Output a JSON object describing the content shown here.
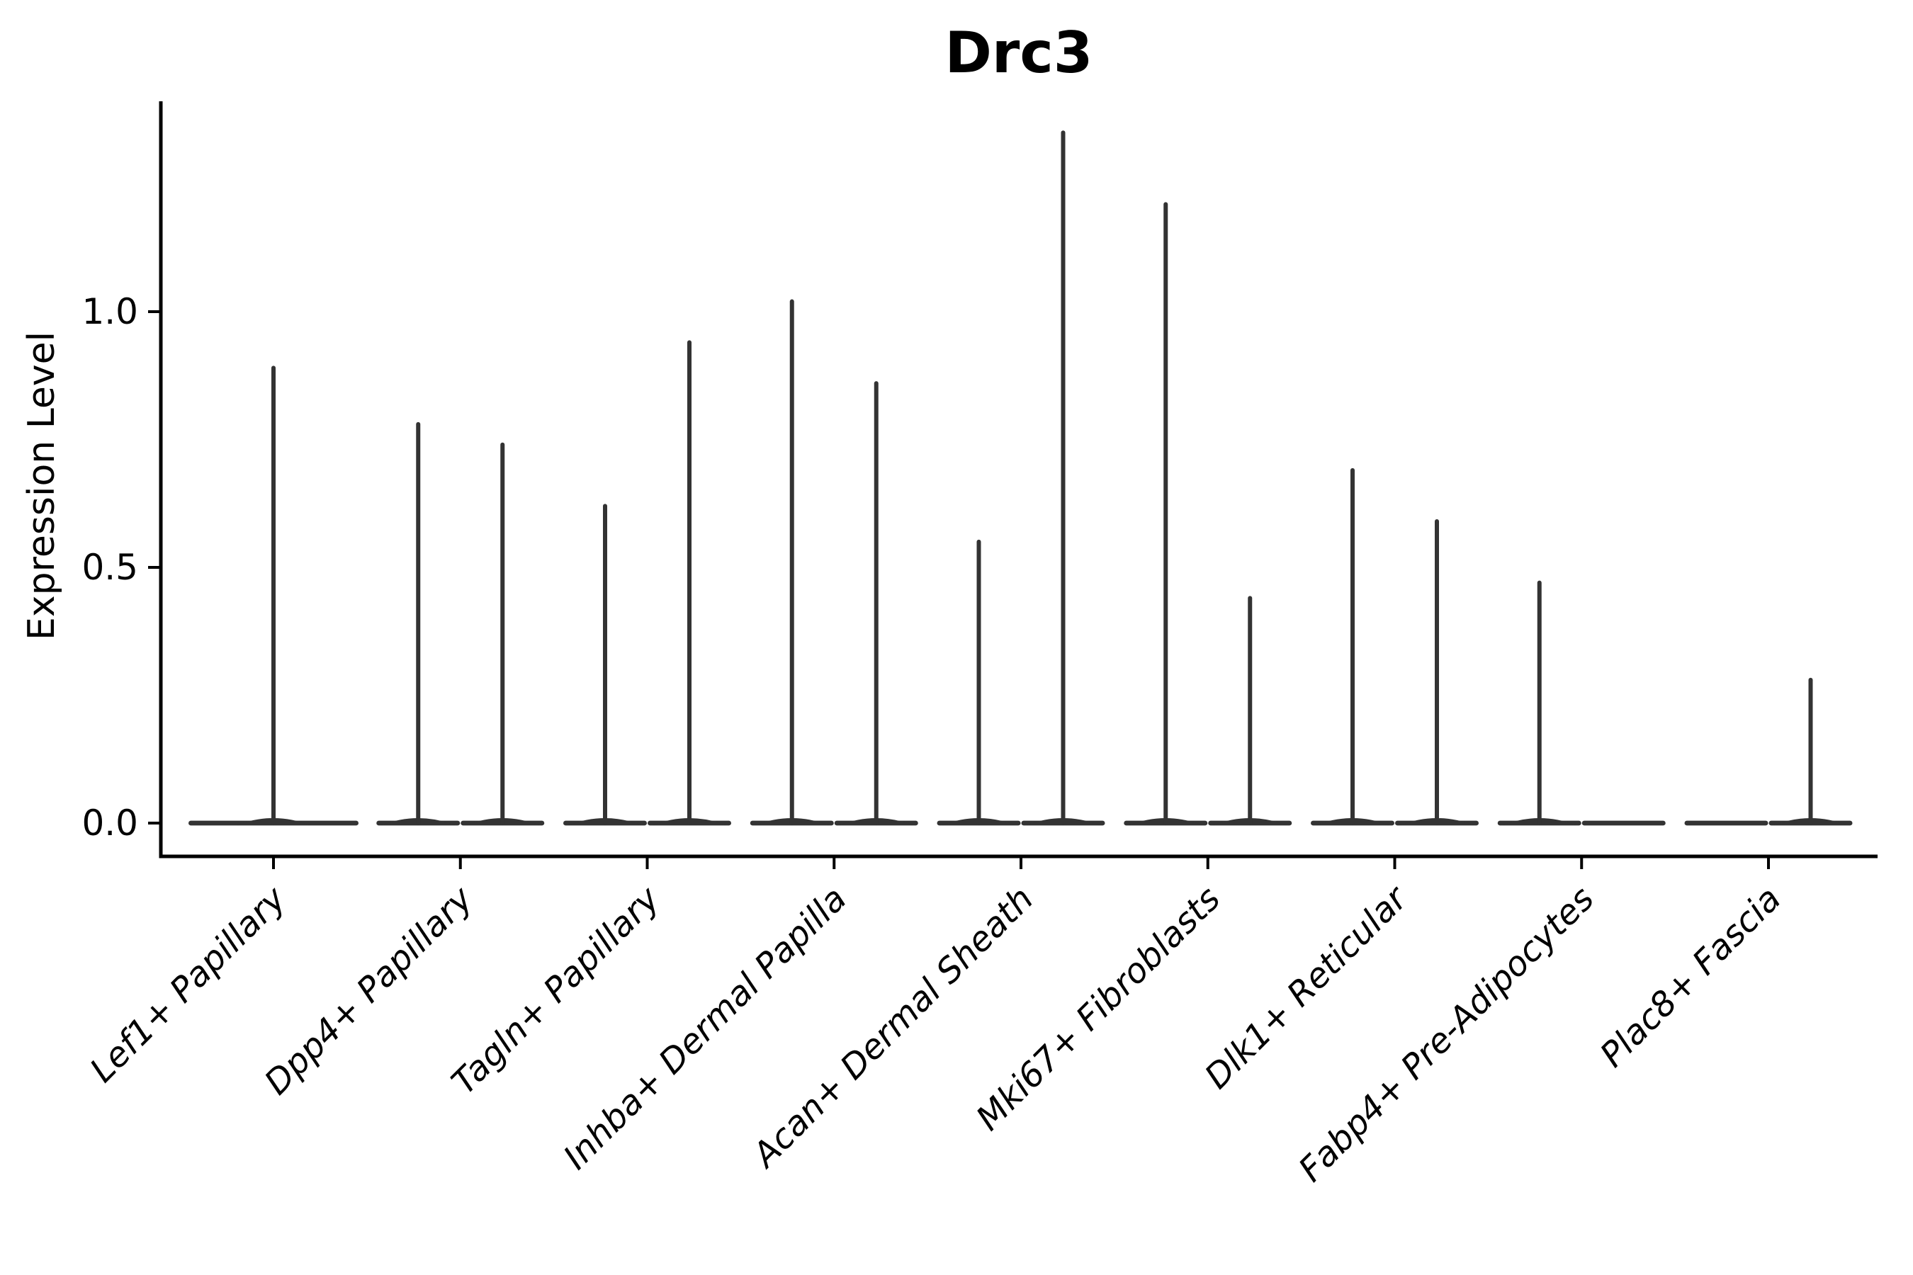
{
  "chart_data": {
    "type": "violin",
    "title": "Drc3",
    "ylabel": "Expression Level",
    "xlabel": "",
    "legend": "none",
    "grid": false,
    "background": "#ffffff",
    "yticks": [
      "0.0",
      "0.5",
      "1.0"
    ],
    "ytick_values": [
      0.0,
      0.5,
      1.0
    ],
    "ylim": [
      -0.065,
      1.413
    ],
    "categories": [
      "Lef1+ Papillary",
      "Dpp4+ Papillary",
      "Tagln+ Papillary",
      "Inhba+ Dermal Papilla",
      "Acan+ Dermal Sheath",
      "Mki67+ Fibroblasts",
      "Dlk1+ Reticular",
      "Fabp4+ Pre-Adipocytes",
      "Plac8+ Fascia"
    ],
    "violins": [
      {
        "category": "Lef1+ Papillary",
        "spikes": [
          {
            "position": "center",
            "max_expression": 0.89
          }
        ]
      },
      {
        "category": "Dpp4+ Papillary",
        "spikes": [
          {
            "position": "left",
            "max_expression": 0.78
          },
          {
            "position": "right",
            "max_expression": 0.74
          }
        ]
      },
      {
        "category": "Tagln+ Papillary",
        "spikes": [
          {
            "position": "left",
            "max_expression": 0.62
          },
          {
            "position": "right",
            "max_expression": 0.94
          }
        ]
      },
      {
        "category": "Inhba+ Dermal Papilla",
        "spikes": [
          {
            "position": "left",
            "max_expression": 1.02
          },
          {
            "position": "right",
            "max_expression": 0.86
          }
        ]
      },
      {
        "category": "Acan+ Dermal Sheath",
        "spikes": [
          {
            "position": "left",
            "max_expression": 0.55
          },
          {
            "position": "right",
            "max_expression": 1.35
          }
        ]
      },
      {
        "category": "Mki67+ Fibroblasts",
        "spikes": [
          {
            "position": "left",
            "max_expression": 1.21
          },
          {
            "position": "right",
            "max_expression": 0.44
          }
        ]
      },
      {
        "category": "Dlk1+ Reticular",
        "spikes": [
          {
            "position": "left",
            "max_expression": 0.69
          },
          {
            "position": "right",
            "max_expression": 0.59
          }
        ]
      },
      {
        "category": "Fabp4+ Pre-Adipocytes",
        "spikes": [
          {
            "position": "left",
            "max_expression": 0.47
          },
          {
            "position": "right",
            "max_expression": 0.0
          }
        ]
      },
      {
        "category": "Plac8+ Fascia",
        "spikes": [
          {
            "position": "left",
            "max_expression": 0.0
          },
          {
            "position": "right",
            "max_expression": 0.28
          }
        ]
      }
    ],
    "colors": {
      "violin": "#333333",
      "axis": "#000000",
      "text": "#000000",
      "background": "#ffffff"
    }
  }
}
